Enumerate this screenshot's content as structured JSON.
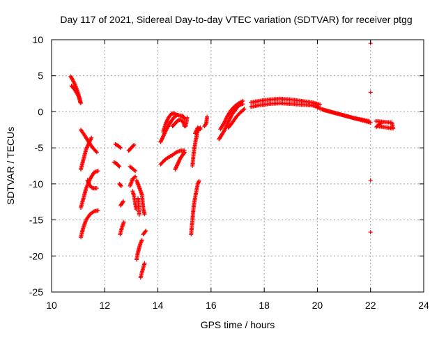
{
  "chart_data": {
    "type": "scatter",
    "title": "Day 117 of 2021, Sidereal Day-to-day VTEC variation (SDTVAR) for receiver ptgg",
    "xlabel": "GPS time / hours",
    "ylabel": "SDTVAR / TECUs",
    "xlim": [
      10,
      24
    ],
    "ylim": [
      -25,
      10
    ],
    "xticks": [
      10,
      12,
      14,
      16,
      18,
      20,
      22,
      24
    ],
    "yticks": [
      10,
      5,
      0,
      -5,
      -10,
      -15,
      -20,
      -25
    ],
    "grid": true,
    "marker": "+",
    "series_color": "#ff0000",
    "segments": [
      {
        "points": [
          [
            10.72,
            4.9
          ],
          [
            10.8,
            4.4
          ],
          [
            10.9,
            3.6
          ],
          [
            11.0,
            2.6
          ],
          [
            11.08,
            1.3
          ]
        ]
      },
      {
        "points": [
          [
            10.75,
            3.6
          ],
          [
            10.85,
            3.2
          ],
          [
            10.95,
            2.6
          ],
          [
            11.05,
            1.9
          ],
          [
            11.1,
            1.2
          ]
        ]
      },
      {
        "points": [
          [
            11.1,
            -8.0
          ],
          [
            11.2,
            -6.6
          ],
          [
            11.3,
            -5.2
          ],
          [
            11.4,
            -4.4
          ],
          [
            11.5,
            -3.6
          ]
        ]
      },
      {
        "points": [
          [
            11.1,
            -2.5
          ],
          [
            11.25,
            -3.3
          ],
          [
            11.4,
            -4.2
          ],
          [
            11.55,
            -5.0
          ],
          [
            11.7,
            -5.6
          ]
        ]
      },
      {
        "points": [
          [
            11.1,
            -13.3
          ],
          [
            11.2,
            -12.0
          ],
          [
            11.3,
            -10.6
          ],
          [
            11.45,
            -9.3
          ],
          [
            11.6,
            -8.4
          ],
          [
            11.75,
            -8.2
          ]
        ]
      },
      {
        "points": [
          [
            11.35,
            -9.5
          ],
          [
            11.45,
            -10.3
          ],
          [
            11.55,
            -10.6
          ],
          [
            11.7,
            -10.6
          ]
        ]
      },
      {
        "points": [
          [
            11.1,
            -17.4
          ],
          [
            11.2,
            -16.0
          ],
          [
            11.3,
            -15.0
          ],
          [
            11.45,
            -14.2
          ],
          [
            11.6,
            -13.8
          ],
          [
            11.75,
            -13.7
          ]
        ]
      },
      {
        "points": [
          [
            12.4,
            -4.5
          ],
          [
            12.5,
            -4.7
          ],
          [
            12.6,
            -5.0
          ]
        ]
      },
      {
        "points": [
          [
            12.35,
            -7.0
          ],
          [
            12.45,
            -7.2
          ],
          [
            12.55,
            -7.6
          ]
        ]
      },
      {
        "points": [
          [
            12.55,
            -10.0
          ],
          [
            12.62,
            -10.3
          ]
        ]
      },
      {
        "points": [
          [
            12.6,
            -13.0
          ],
          [
            12.7,
            -12.4
          ]
        ]
      },
      {
        "points": [
          [
            12.58,
            -17.0
          ],
          [
            12.65,
            -16.0
          ],
          [
            12.72,
            -15.3
          ]
        ]
      },
      {
        "points": [
          [
            12.9,
            -5.4
          ],
          [
            13.0,
            -5.0
          ],
          [
            13.1,
            -4.6
          ]
        ]
      },
      {
        "points": [
          [
            12.95,
            -7.6
          ],
          [
            13.05,
            -7.9
          ],
          [
            13.15,
            -8.2
          ]
        ]
      },
      {
        "points": [
          [
            12.95,
            -10.3
          ],
          [
            13.05,
            -9.3
          ],
          [
            13.15,
            -9.0
          ]
        ]
      },
      {
        "points": [
          [
            13.05,
            -11.0
          ],
          [
            13.12,
            -12.0
          ],
          [
            13.18,
            -13.5
          ]
        ]
      },
      {
        "points": [
          [
            13.2,
            -9.5
          ],
          [
            13.3,
            -10.5
          ],
          [
            13.4,
            -11.5
          ],
          [
            13.45,
            -13.5
          ],
          [
            13.5,
            -14.2
          ]
        ]
      },
      {
        "points": [
          [
            13.25,
            -12.0
          ],
          [
            13.3,
            -14.3
          ]
        ]
      },
      {
        "points": [
          [
            13.2,
            -20.5
          ],
          [
            13.25,
            -19.5
          ],
          [
            13.3,
            -18.8
          ],
          [
            13.35,
            -18.2
          ],
          [
            13.4,
            -17.8
          ]
        ]
      },
      {
        "points": [
          [
            13.35,
            -23.0
          ],
          [
            13.42,
            -22.0
          ],
          [
            13.5,
            -21.0
          ]
        ]
      },
      {
        "points": [
          [
            13.45,
            -17.0
          ],
          [
            13.55,
            -16.5
          ]
        ]
      },
      {
        "points": [
          [
            14.1,
            -4.2
          ],
          [
            14.2,
            -3.4
          ],
          [
            14.3,
            -2.6
          ],
          [
            14.4,
            -1.9
          ],
          [
            14.5,
            -1.3
          ],
          [
            14.6,
            -0.8
          ],
          [
            14.7,
            -0.5
          ]
        ]
      },
      {
        "points": [
          [
            14.2,
            -2.8
          ],
          [
            14.3,
            -1.6
          ],
          [
            14.4,
            -0.8
          ],
          [
            14.5,
            -0.3
          ],
          [
            14.6,
            -0.2
          ],
          [
            14.7,
            -0.4
          ],
          [
            14.8,
            -0.5
          ],
          [
            14.95,
            -0.6
          ],
          [
            15.0,
            -1.0
          ]
        ]
      },
      {
        "points": [
          [
            14.55,
            -2.0
          ],
          [
            14.65,
            -1.6
          ],
          [
            14.75,
            -1.2
          ],
          [
            14.85,
            -1.1
          ],
          [
            14.95,
            -1.4
          ],
          [
            15.0,
            -2.0
          ]
        ]
      },
      {
        "points": [
          [
            14.1,
            -7.3
          ],
          [
            14.25,
            -6.7
          ],
          [
            14.4,
            -6.3
          ],
          [
            14.55,
            -6.0
          ],
          [
            14.7,
            -5.6
          ],
          [
            14.85,
            -5.4
          ],
          [
            15.0,
            -5.4
          ]
        ]
      },
      {
        "points": [
          [
            14.65,
            -8.0
          ],
          [
            14.75,
            -7.2
          ],
          [
            14.85,
            -6.4
          ],
          [
            14.95,
            -5.9
          ],
          [
            15.0,
            -5.6
          ]
        ]
      },
      {
        "points": [
          [
            15.05,
            -2.0
          ],
          [
            15.1,
            -0.8
          ]
        ]
      },
      {
        "points": [
          [
            15.3,
            -7.5
          ],
          [
            15.35,
            -5.6
          ],
          [
            15.42,
            -4.0
          ],
          [
            15.5,
            -2.6
          ],
          [
            15.6,
            -2.2
          ]
        ]
      },
      {
        "points": [
          [
            15.4,
            -3.0
          ],
          [
            15.5,
            -2.2
          ],
          [
            15.6,
            -2.4
          ]
        ]
      },
      {
        "points": [
          [
            15.25,
            -17.0
          ],
          [
            15.3,
            -15.0
          ],
          [
            15.35,
            -13.0
          ],
          [
            15.42,
            -11.5
          ],
          [
            15.5,
            -10.0
          ],
          [
            15.55,
            -9.6
          ]
        ]
      },
      {
        "points": [
          [
            15.75,
            -2.0
          ],
          [
            15.82,
            -1.6
          ],
          [
            15.85,
            -0.7
          ]
        ]
      },
      {
        "points": [
          [
            16.3,
            -3.8
          ],
          [
            16.4,
            -3.2
          ],
          [
            16.5,
            -2.6
          ],
          [
            16.6,
            -1.8
          ],
          [
            16.7,
            -1.0
          ],
          [
            16.8,
            -0.3
          ],
          [
            16.9,
            0.2
          ],
          [
            17.0,
            0.7
          ],
          [
            17.1,
            1.0
          ],
          [
            17.2,
            1.1
          ]
        ]
      },
      {
        "points": [
          [
            16.35,
            -2.4
          ],
          [
            16.5,
            -1.5
          ],
          [
            16.6,
            -0.7
          ],
          [
            16.75,
            0.2
          ],
          [
            16.9,
            0.8
          ],
          [
            17.05,
            1.2
          ],
          [
            17.2,
            1.5
          ]
        ]
      },
      {
        "points": [
          [
            16.65,
            -2.2
          ],
          [
            16.8,
            -1.5
          ],
          [
            16.95,
            -0.7
          ],
          [
            17.1,
            -0.1
          ],
          [
            17.25,
            0.4
          ]
        ]
      },
      {
        "points": [
          [
            17.5,
            1.3
          ],
          [
            17.8,
            1.5
          ],
          [
            18.2,
            1.7
          ],
          [
            18.6,
            1.8
          ],
          [
            19.0,
            1.7
          ],
          [
            19.4,
            1.5
          ],
          [
            19.8,
            1.3
          ],
          [
            20.1,
            1.0
          ]
        ]
      },
      {
        "points": [
          [
            17.5,
            0.7
          ],
          [
            17.8,
            0.9
          ],
          [
            18.2,
            1.1
          ],
          [
            18.6,
            1.2
          ],
          [
            19.0,
            1.1
          ],
          [
            19.4,
            1.0
          ],
          [
            19.8,
            0.9
          ],
          [
            20.0,
            0.7
          ]
        ]
      },
      {
        "points": [
          [
            20.0,
            0.6
          ],
          [
            20.3,
            0.2
          ],
          [
            20.6,
            -0.1
          ],
          [
            20.9,
            -0.4
          ],
          [
            21.2,
            -0.7
          ],
          [
            21.5,
            -1.0
          ],
          [
            21.8,
            -1.3
          ],
          [
            22.0,
            -1.5
          ]
        ]
      },
      {
        "points": [
          [
            20.2,
            0.3
          ],
          [
            20.5,
            0.0
          ],
          [
            20.8,
            -0.3
          ],
          [
            21.1,
            -0.6
          ],
          [
            21.4,
            -0.9
          ],
          [
            21.7,
            -1.1
          ],
          [
            21.95,
            -1.3
          ]
        ]
      },
      {
        "points": [
          [
            22.2,
            -1.3
          ],
          [
            22.5,
            -1.4
          ],
          [
            22.8,
            -1.5
          ],
          [
            22.85,
            -2.3
          ]
        ]
      },
      {
        "points": [
          [
            22.25,
            -2.0
          ],
          [
            22.5,
            -2.1
          ],
          [
            22.8,
            -2.3
          ]
        ]
      },
      {
        "points": [
          [
            22.22,
            -2.1
          ],
          [
            22.3,
            -1.8
          ],
          [
            22.4,
            -1.6
          ]
        ]
      },
      {
        "points": [
          [
            22.0,
            9.5
          ]
        ]
      },
      {
        "points": [
          [
            22.0,
            2.7
          ]
        ]
      },
      {
        "points": [
          [
            22.0,
            -9.5
          ]
        ]
      },
      {
        "points": [
          [
            22.0,
            -16.7
          ]
        ]
      }
    ]
  }
}
